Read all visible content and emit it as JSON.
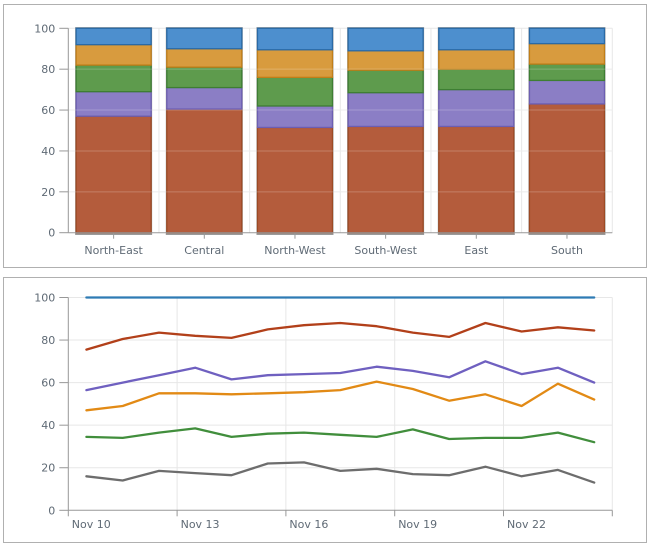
{
  "page": {
    "background": "#ffffff",
    "panel_border": "#b0b0b0"
  },
  "chart_data": [
    {
      "type": "bar",
      "stacked": true,
      "stack_total": 100,
      "title": "",
      "xlabel": "",
      "ylabel": "",
      "ylim": [
        0,
        100
      ],
      "yticks": [
        0,
        20,
        40,
        60,
        80,
        100
      ],
      "grid": true,
      "legend": "none",
      "categories": [
        "North-East",
        "Central",
        "North-West",
        "South-West",
        "East",
        "South"
      ],
      "series": [
        {
          "name": "rust",
          "color": "#b45c3c",
          "border": "#9c4a24",
          "values": [
            57,
            60.5,
            51.5,
            52,
            52,
            63
          ]
        },
        {
          "name": "purple",
          "color": "#8b7ec5",
          "border": "#6c5eb2",
          "values": [
            12,
            10.5,
            10.5,
            16.5,
            18,
            11.5
          ]
        },
        {
          "name": "green",
          "color": "#5e9b4d",
          "border": "#3e7e33",
          "values": [
            13,
            10,
            14,
            11,
            10,
            8
          ]
        },
        {
          "name": "orange",
          "color": "#d89b3e",
          "border": "#c17e18",
          "values": [
            10,
            9,
            13.5,
            9.5,
            9.5,
            10
          ]
        },
        {
          "name": "blue",
          "color": "#4d8fce",
          "border": "#2a6aa6",
          "values": [
            8,
            10,
            10.5,
            11,
            10.5,
            7.5
          ]
        }
      ],
      "bar_shadow_color": "#9b9b9b",
      "axis_color": "#989898",
      "grid_color": "#e7e7e7",
      "label_color": "#5f6a75"
    },
    {
      "type": "line",
      "title": "",
      "xlabel": "",
      "ylabel": "",
      "ylim": [
        0,
        100
      ],
      "yticks": [
        0,
        20,
        40,
        60,
        80,
        100
      ],
      "grid": true,
      "legend": "none",
      "x_points": 15,
      "x_tick_every": 3,
      "x_tick_labels": [
        "Nov 10",
        "Nov 13",
        "Nov 16",
        "Nov 19",
        "Nov 22"
      ],
      "series": [
        {
          "name": "blue",
          "color": "#2e7bb4",
          "values": [
            100,
            100,
            100,
            100,
            100,
            100,
            100,
            100,
            100,
            100,
            100,
            100,
            100,
            100,
            100
          ]
        },
        {
          "name": "red",
          "color": "#b2401a",
          "values": [
            75.5,
            80.5,
            83.5,
            82,
            81,
            85,
            87,
            88,
            86.5,
            83.5,
            81.5,
            88,
            84,
            86,
            84.5
          ]
        },
        {
          "name": "purple",
          "color": "#6f60c0",
          "values": [
            56.5,
            60,
            63.5,
            67,
            61.5,
            63.5,
            64,
            64.5,
            67.5,
            65.5,
            62.5,
            70,
            64,
            67,
            60
          ]
        },
        {
          "name": "orange",
          "color": "#e28a15",
          "values": [
            47,
            49,
            55,
            55,
            54.5,
            55,
            55.5,
            56.5,
            60.5,
            57,
            51.5,
            54.5,
            49,
            59.5,
            52
          ]
        },
        {
          "name": "green",
          "color": "#418e3c",
          "values": [
            34.5,
            34,
            36.5,
            38.5,
            34.5,
            36,
            36.5,
            35.5,
            34.5,
            38,
            33.5,
            34,
            34,
            36.5,
            32
          ]
        },
        {
          "name": "gray",
          "color": "#6d6d6d",
          "values": [
            16,
            14,
            18.5,
            17.5,
            16.5,
            22,
            22.5,
            18.5,
            19.5,
            17,
            16.5,
            20.5,
            16,
            19,
            13
          ]
        }
      ],
      "axis_color": "#989898",
      "grid_color": "#e7e7e7",
      "label_color": "#5f6a75"
    }
  ]
}
